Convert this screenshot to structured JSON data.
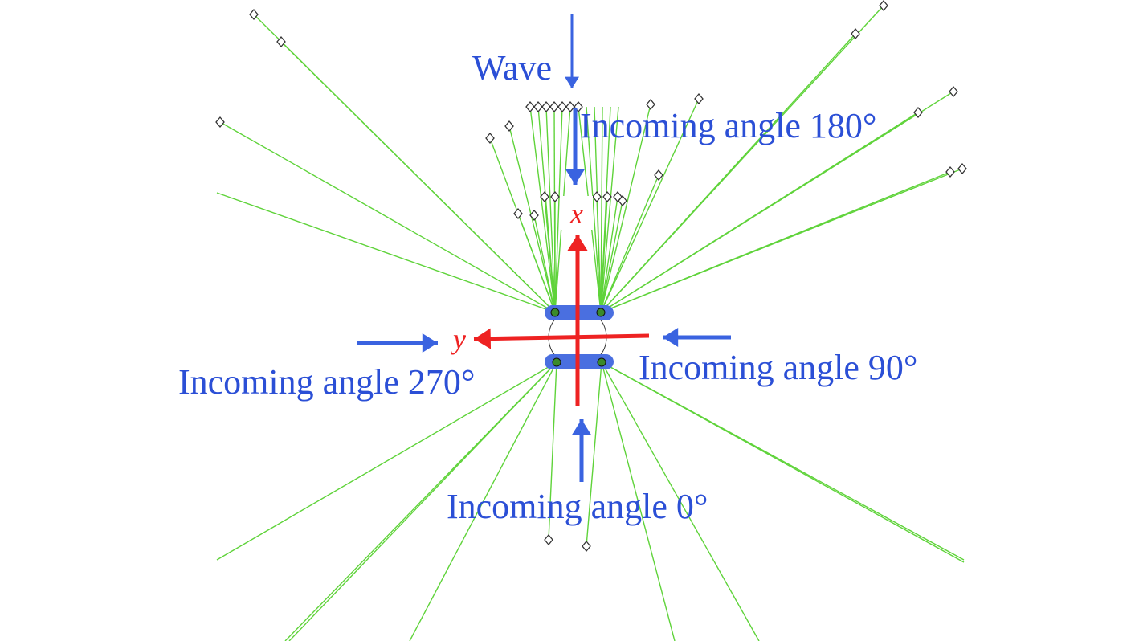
{
  "labels": {
    "wave": "Wave",
    "angle_180": "Incoming angle 180°",
    "angle_90": "Incoming angle 90°",
    "angle_270": "Incoming angle 270°",
    "angle_0": "Incoming angle 0°",
    "axis_x": "x",
    "axis_y": "y"
  },
  "colors": {
    "mooring_line": "#5fd33a",
    "label_blue": "#2b4fd6",
    "arrow_blue": "#3a63e0",
    "axis_red": "#ee2222",
    "pontoon": "#4a6fe0",
    "anchor": "#333333"
  }
}
